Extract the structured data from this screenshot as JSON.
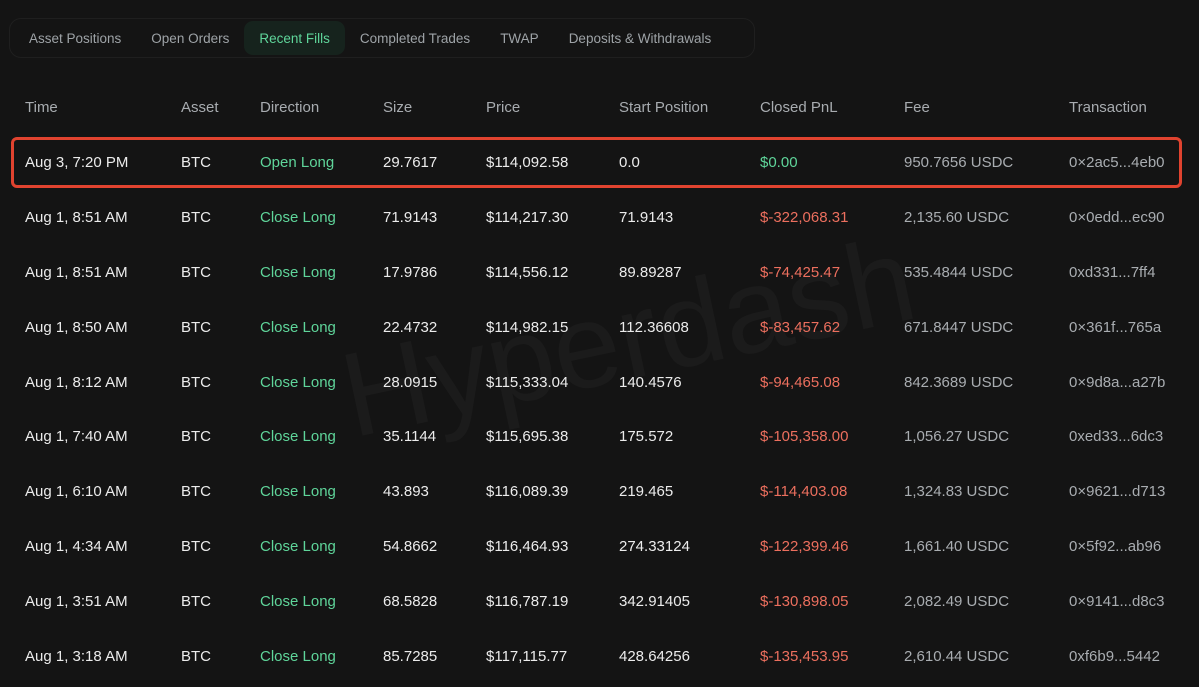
{
  "tabs": [
    {
      "label": "Asset Positions",
      "active": false
    },
    {
      "label": "Open Orders",
      "active": false
    },
    {
      "label": "Recent Fills",
      "active": true
    },
    {
      "label": "Completed Trades",
      "active": false
    },
    {
      "label": "TWAP",
      "active": false
    },
    {
      "label": "Deposits & Withdrawals",
      "active": false
    }
  ],
  "watermark": "Hyperdash",
  "colors": {
    "background": "#141414",
    "accent_green": "#5fd59a",
    "loss_red": "#ec6f5e",
    "highlight_border": "#e0432f"
  },
  "table": {
    "headers": {
      "time": "Time",
      "asset": "Asset",
      "direction": "Direction",
      "size": "Size",
      "price": "Price",
      "start_position": "Start Position",
      "closed_pnl": "Closed PnL",
      "fee": "Fee",
      "transaction": "Transaction"
    },
    "rows": [
      {
        "time": "Aug 3, 7:20 PM",
        "asset": "BTC",
        "direction": "Open Long",
        "size": "29.7617",
        "price": "$114,092.58",
        "start_position": "0.0",
        "closed_pnl": "$0.00",
        "fee": "950.7656 USDC",
        "transaction": "0×2ac5...4eb0",
        "highlighted": true
      },
      {
        "time": "Aug 1, 8:51 AM",
        "asset": "BTC",
        "direction": "Close Long",
        "size": "71.9143",
        "price": "$114,217.30",
        "start_position": "71.9143",
        "closed_pnl": "$-322,068.31",
        "fee": "2,135.60 USDC",
        "transaction": "0×0edd...ec90"
      },
      {
        "time": "Aug 1, 8:51 AM",
        "asset": "BTC",
        "direction": "Close Long",
        "size": "17.9786",
        "price": "$114,556.12",
        "start_position": "89.89287",
        "closed_pnl": "$-74,425.47",
        "fee": "535.4844 USDC",
        "transaction": "0xd331...7ff4"
      },
      {
        "time": "Aug 1, 8:50 AM",
        "asset": "BTC",
        "direction": "Close Long",
        "size": "22.4732",
        "price": "$114,982.15",
        "start_position": "112.36608",
        "closed_pnl": "$-83,457.62",
        "fee": "671.8447 USDC",
        "transaction": "0×361f...765a"
      },
      {
        "time": "Aug 1, 8:12 AM",
        "asset": "BTC",
        "direction": "Close Long",
        "size": "28.0915",
        "price": "$115,333.04",
        "start_position": "140.4576",
        "closed_pnl": "$-94,465.08",
        "fee": "842.3689 USDC",
        "transaction": "0×9d8a...a27b"
      },
      {
        "time": "Aug 1, 7:40 AM",
        "asset": "BTC",
        "direction": "Close Long",
        "size": "35.1144",
        "price": "$115,695.38",
        "start_position": "175.572",
        "closed_pnl": "$-105,358.00",
        "fee": "1,056.27 USDC",
        "transaction": "0xed33...6dc3"
      },
      {
        "time": "Aug 1, 6:10 AM",
        "asset": "BTC",
        "direction": "Close Long",
        "size": "43.893",
        "price": "$116,089.39",
        "start_position": "219.465",
        "closed_pnl": "$-114,403.08",
        "fee": "1,324.83 USDC",
        "transaction": "0×9621...d713"
      },
      {
        "time": "Aug 1, 4:34 AM",
        "asset": "BTC",
        "direction": "Close Long",
        "size": "54.8662",
        "price": "$116,464.93",
        "start_position": "274.33124",
        "closed_pnl": "$-122,399.46",
        "fee": "1,661.40 USDC",
        "transaction": "0×5f92...ab96"
      },
      {
        "time": "Aug 1, 3:51 AM",
        "asset": "BTC",
        "direction": "Close Long",
        "size": "68.5828",
        "price": "$116,787.19",
        "start_position": "342.91405",
        "closed_pnl": "$-130,898.05",
        "fee": "2,082.49 USDC",
        "transaction": "0×9141...d8c3"
      },
      {
        "time": "Aug 1, 3:18 AM",
        "asset": "BTC",
        "direction": "Close Long",
        "size": "85.7285",
        "price": "$117,115.77",
        "start_position": "428.64256",
        "closed_pnl": "$-135,453.95",
        "fee": "2,610.44 USDC",
        "transaction": "0xf6b9...5442"
      }
    ]
  }
}
